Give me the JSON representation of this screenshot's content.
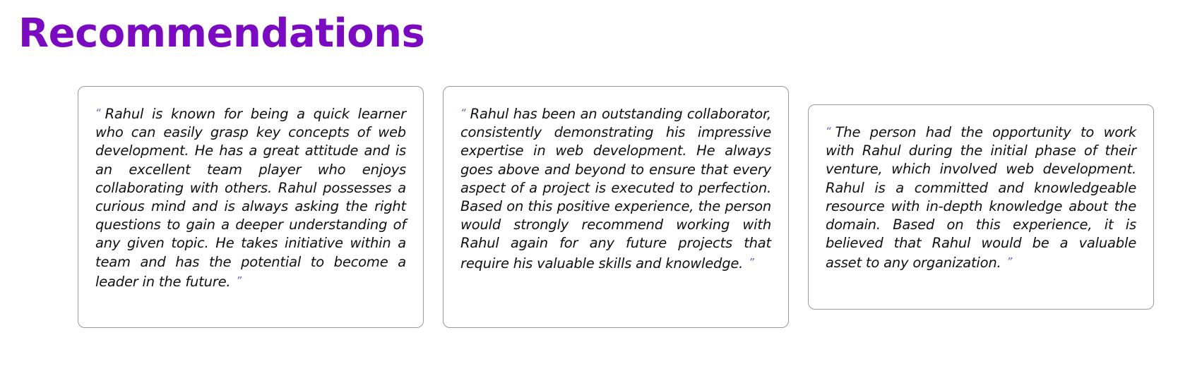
{
  "section": {
    "title": "Recommendations"
  },
  "quote_marks": {
    "open": "“",
    "close": "”"
  },
  "recommendations": [
    {
      "text": "Rahul is known for being a quick learner who can easily grasp key concepts of web development. He has a great attitude and is an excellent team player who enjoys collaborating with others. Rahul possesses a curious mind and is always asking the right questions to gain a deeper understanding of any given topic. He takes initiative within a team and has the potential to become a leader in the future."
    },
    {
      "text": "Rahul has been an outstanding collaborator, consistently demonstrating his impressive expertise in web development. He always goes above and beyond to ensure that every aspect of a project is executed to perfection. Based on this positive experience, the person would strongly recommend working with Rahul again for any future projects that require his valuable skills and knowledge."
    },
    {
      "text": "The person had the opportunity to work with Rahul during the initial phase of their venture, which involved web development. Rahul is a committed and knowledgeable resource with in-depth knowledge about the domain. Based on this experience, it is believed that Rahul would be a valuable asset to any organization."
    }
  ],
  "colors": {
    "accent": "#7a0bc0",
    "quote_mark": "#7a55c0",
    "card_border": "#9a9a9a",
    "text": "#111111"
  }
}
